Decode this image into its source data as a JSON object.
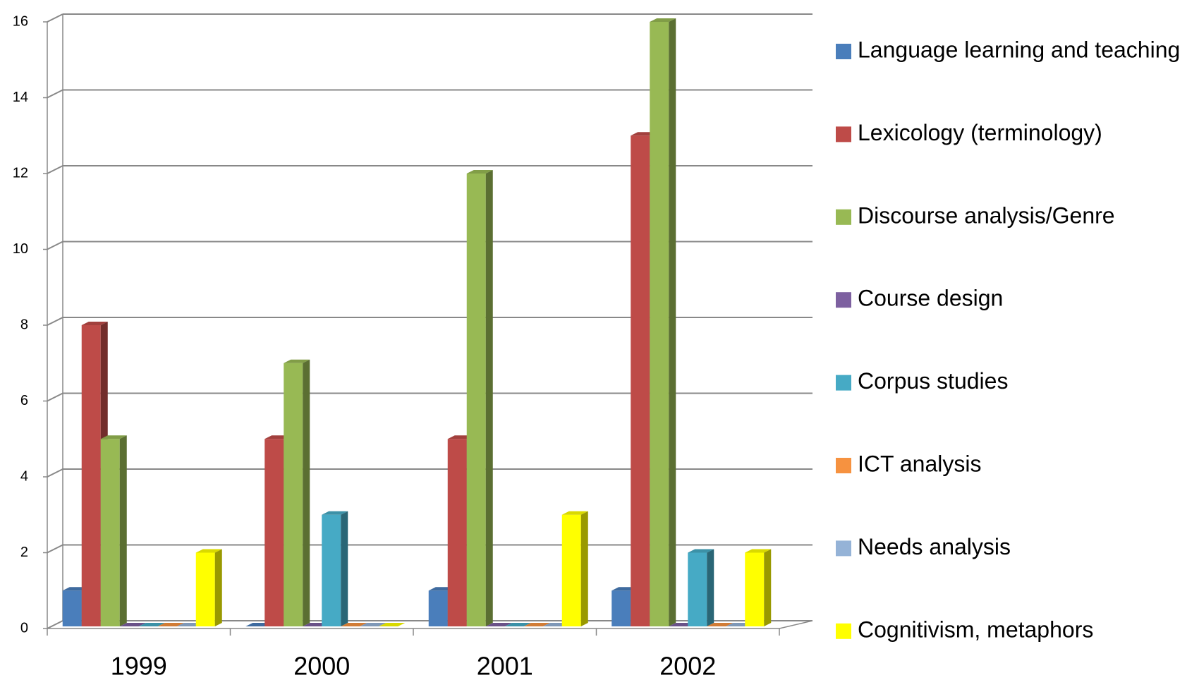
{
  "chart_data": {
    "type": "bar3d",
    "categories": [
      "1999",
      "2000",
      "2001",
      "2002"
    ],
    "series": [
      {
        "name": "Language learning and teaching",
        "color": "#4a7ebb",
        "values": [
          1,
          0,
          1,
          1
        ]
      },
      {
        "name": "Lexicology (terminology)",
        "color": "#be4b48",
        "values": [
          8,
          5,
          5,
          13
        ]
      },
      {
        "name": "Discourse analysis/Genre",
        "color": "#98b954",
        "values": [
          5,
          7,
          12,
          16
        ]
      },
      {
        "name": "Course design",
        "color": "#7d60a0",
        "values": [
          0,
          0,
          0,
          0
        ]
      },
      {
        "name": "Corpus studies",
        "color": "#46aac5",
        "values": [
          0,
          3,
          0,
          2
        ]
      },
      {
        "name": "ICT analysis",
        "color": "#f69240",
        "values": [
          0,
          0,
          0,
          0
        ]
      },
      {
        "name": "Needs analysis",
        "color": "#95b3d7",
        "values": [
          0,
          0,
          0,
          0
        ]
      },
      {
        "name": "Cognitivism, metaphors",
        "color": "#ffff00",
        "values": [
          2,
          0,
          3,
          2
        ]
      }
    ],
    "ylim": [
      0,
      16
    ],
    "yticks": [
      0,
      2,
      4,
      6,
      8,
      10,
      12,
      14,
      16
    ],
    "grid": true,
    "legend": "right"
  }
}
